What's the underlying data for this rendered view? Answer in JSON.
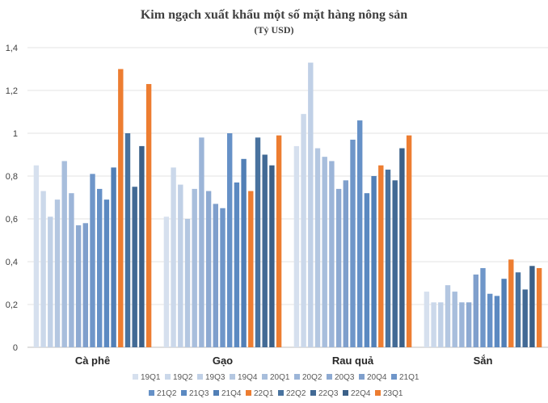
{
  "chart_data": {
    "type": "bar",
    "title": "Kim ngạch xuất khẩu một số mặt hàng nông sản",
    "subtitle": "(Tỷ USD)",
    "categories": [
      "Cà phê",
      "Gạo",
      "Rau quả",
      "Sắn"
    ],
    "ylim": [
      0,
      1.4
    ],
    "yticks": [
      0,
      0.2,
      0.4,
      0.6,
      0.8,
      1,
      1.2,
      1.4
    ],
    "ytick_labels": [
      "0",
      "0,2",
      "0,4",
      "0,6",
      "0,8",
      "1",
      "1,2",
      "1,4"
    ],
    "grid": true,
    "legend_position": "bottom",
    "series": [
      {
        "name": "19Q1",
        "color": "#d6e0ee",
        "values": [
          0.85,
          0.61,
          0.94,
          0.26
        ]
      },
      {
        "name": "19Q2",
        "color": "#cbd8ea",
        "values": [
          0.73,
          0.84,
          1.09,
          0.21
        ]
      },
      {
        "name": "19Q3",
        "color": "#c0d0e6",
        "values": [
          0.61,
          0.76,
          1.33,
          0.21
        ]
      },
      {
        "name": "19Q4",
        "color": "#b4c7e1",
        "values": [
          0.69,
          0.6,
          0.93,
          0.29
        ]
      },
      {
        "name": "20Q1",
        "color": "#a8bedc",
        "values": [
          0.87,
          0.74,
          0.89,
          0.26
        ]
      },
      {
        "name": "20Q2",
        "color": "#9cb5d8",
        "values": [
          0.72,
          0.98,
          0.87,
          0.21
        ]
      },
      {
        "name": "20Q3",
        "color": "#8eaad2",
        "values": [
          0.57,
          0.73,
          0.74,
          0.21
        ]
      },
      {
        "name": "20Q4",
        "color": "#7f9fcc",
        "values": [
          0.58,
          0.67,
          0.78,
          0.34
        ]
      },
      {
        "name": "21Q1",
        "color": "#6f96c9",
        "values": [
          0.81,
          0.65,
          0.97,
          0.37
        ]
      },
      {
        "name": "21Q2",
        "color": "#6691c7",
        "values": [
          0.74,
          1.0,
          1.06,
          0.25
        ]
      },
      {
        "name": "21Q3",
        "color": "#5b89c1",
        "values": [
          0.69,
          0.77,
          0.72,
          0.24
        ]
      },
      {
        "name": "21Q4",
        "color": "#517fb6",
        "values": [
          0.84,
          0.88,
          0.8,
          0.32
        ]
      },
      {
        "name": "22Q1",
        "color": "#ed7d31",
        "values": [
          1.3,
          0.73,
          0.85,
          0.41
        ]
      },
      {
        "name": "22Q2",
        "color": "#49739f",
        "values": [
          1.0,
          0.98,
          0.83,
          0.35
        ]
      },
      {
        "name": "22Q3",
        "color": "#426a95",
        "values": [
          0.75,
          0.9,
          0.78,
          0.27
        ]
      },
      {
        "name": "22Q4",
        "color": "#3b6088",
        "values": [
          0.94,
          0.85,
          0.93,
          0.38
        ]
      },
      {
        "name": "23Q1",
        "color": "#ed7d31",
        "values": [
          1.23,
          0.99,
          0.99,
          0.37
        ]
      }
    ]
  }
}
